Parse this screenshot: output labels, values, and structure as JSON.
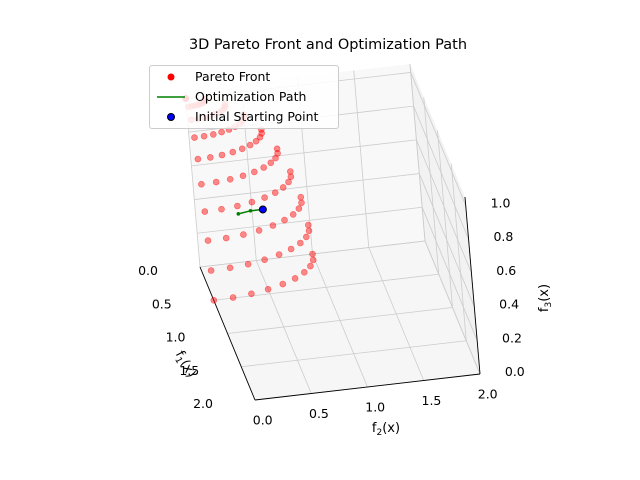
{
  "chart_data": {
    "type": "scatter3d",
    "title": "3D Pareto Front and Optimization Path",
    "axes": {
      "x": {
        "label_main": "f",
        "label_sub": "1",
        "label_tail": "(x)",
        "ticks": [
          "0.0",
          "0.5",
          "1.0",
          "1.5",
          "2.0"
        ],
        "range": [
          0,
          2
        ]
      },
      "y": {
        "label_main": "f",
        "label_sub": "2",
        "label_tail": "(x)",
        "ticks": [
          "0.0",
          "0.5",
          "1.0",
          "1.5",
          "2.0"
        ],
        "range": [
          0,
          2
        ]
      },
      "z": {
        "label_main": "f",
        "label_sub": "3",
        "label_tail": "(x)",
        "ticks": [
          "0.0",
          "0.2",
          "0.4",
          "0.6",
          "0.8",
          "1.0"
        ],
        "range": [
          0,
          1
        ]
      }
    },
    "grid": true,
    "legend": {
      "placement": "top-left",
      "items": [
        {
          "label": "Pareto Front",
          "kind": "marker",
          "color": "#ff0000"
        },
        {
          "label": "Optimization Path",
          "kind": "line",
          "color": "#008000"
        },
        {
          "label": "Initial Starting Point",
          "kind": "marker",
          "color": "#0000ff",
          "edge": "#000000"
        }
      ]
    },
    "pareto_front": {
      "name": "Pareto Front",
      "color": "#ff0000",
      "description": "surface grid f1 = a·sqrt(1-u²)… sampled",
      "grid_a": [
        0.0,
        0.111,
        0.222,
        0.333,
        0.444,
        0.556,
        0.667,
        0.778,
        0.889,
        1.0
      ],
      "grid_b": [
        0.0,
        0.111,
        0.222,
        0.333,
        0.444,
        0.556,
        0.667,
        0.778,
        0.889,
        1.0
      ]
    },
    "optimization_path": {
      "name": "Optimization Path",
      "color": "#008000",
      "points": [
        [
          0.5,
          0.5,
          0.5
        ],
        [
          0.45,
          0.4,
          0.48
        ],
        [
          0.4,
          0.3,
          0.45
        ]
      ]
    },
    "initial_point": {
      "name": "Initial Starting Point",
      "color": "#0000ff",
      "point": [
        0.5,
        0.5,
        0.5
      ]
    }
  }
}
